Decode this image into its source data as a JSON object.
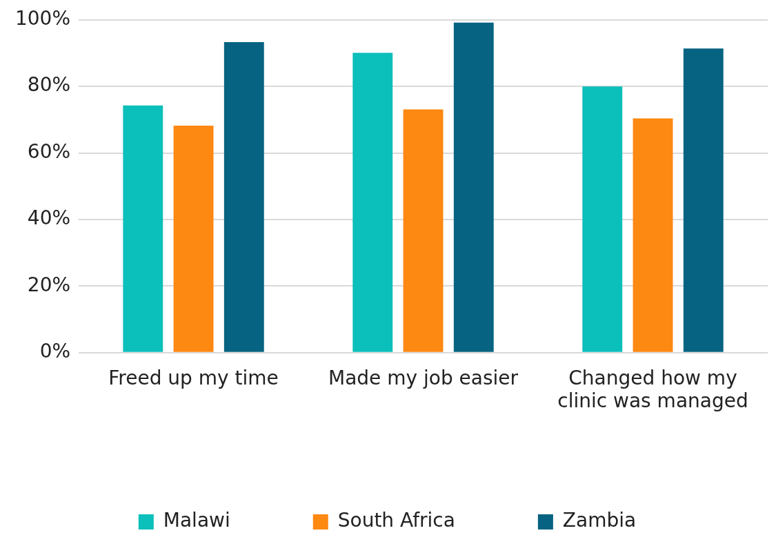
{
  "chart_data": {
    "type": "bar",
    "categories": [
      "Freed up my time",
      "Made my job easier",
      "Changed how my clinic was managed"
    ],
    "series": [
      {
        "name": "Malawi",
        "color": "#0bbfbb",
        "values": [
          74.3,
          90.1,
          80
        ]
      },
      {
        "name": "South Africa",
        "color": "#fd8812",
        "values": [
          68.2,
          73.1,
          70.4
        ]
      },
      {
        "name": "Zambia",
        "color": "#076382",
        "values": [
          93.3,
          99.2,
          91.4
        ]
      }
    ],
    "ylim": [
      0,
      100
    ],
    "yticks": [
      {
        "value": 0,
        "label": "0%"
      },
      {
        "value": 20,
        "label": "20%"
      },
      {
        "value": 40,
        "label": "40%"
      },
      {
        "value": 60,
        "label": "60%"
      },
      {
        "value": 80,
        "label": "80%"
      },
      {
        "value": 100,
        "label": "100%"
      }
    ],
    "grid": "y",
    "legend": "bottom"
  }
}
